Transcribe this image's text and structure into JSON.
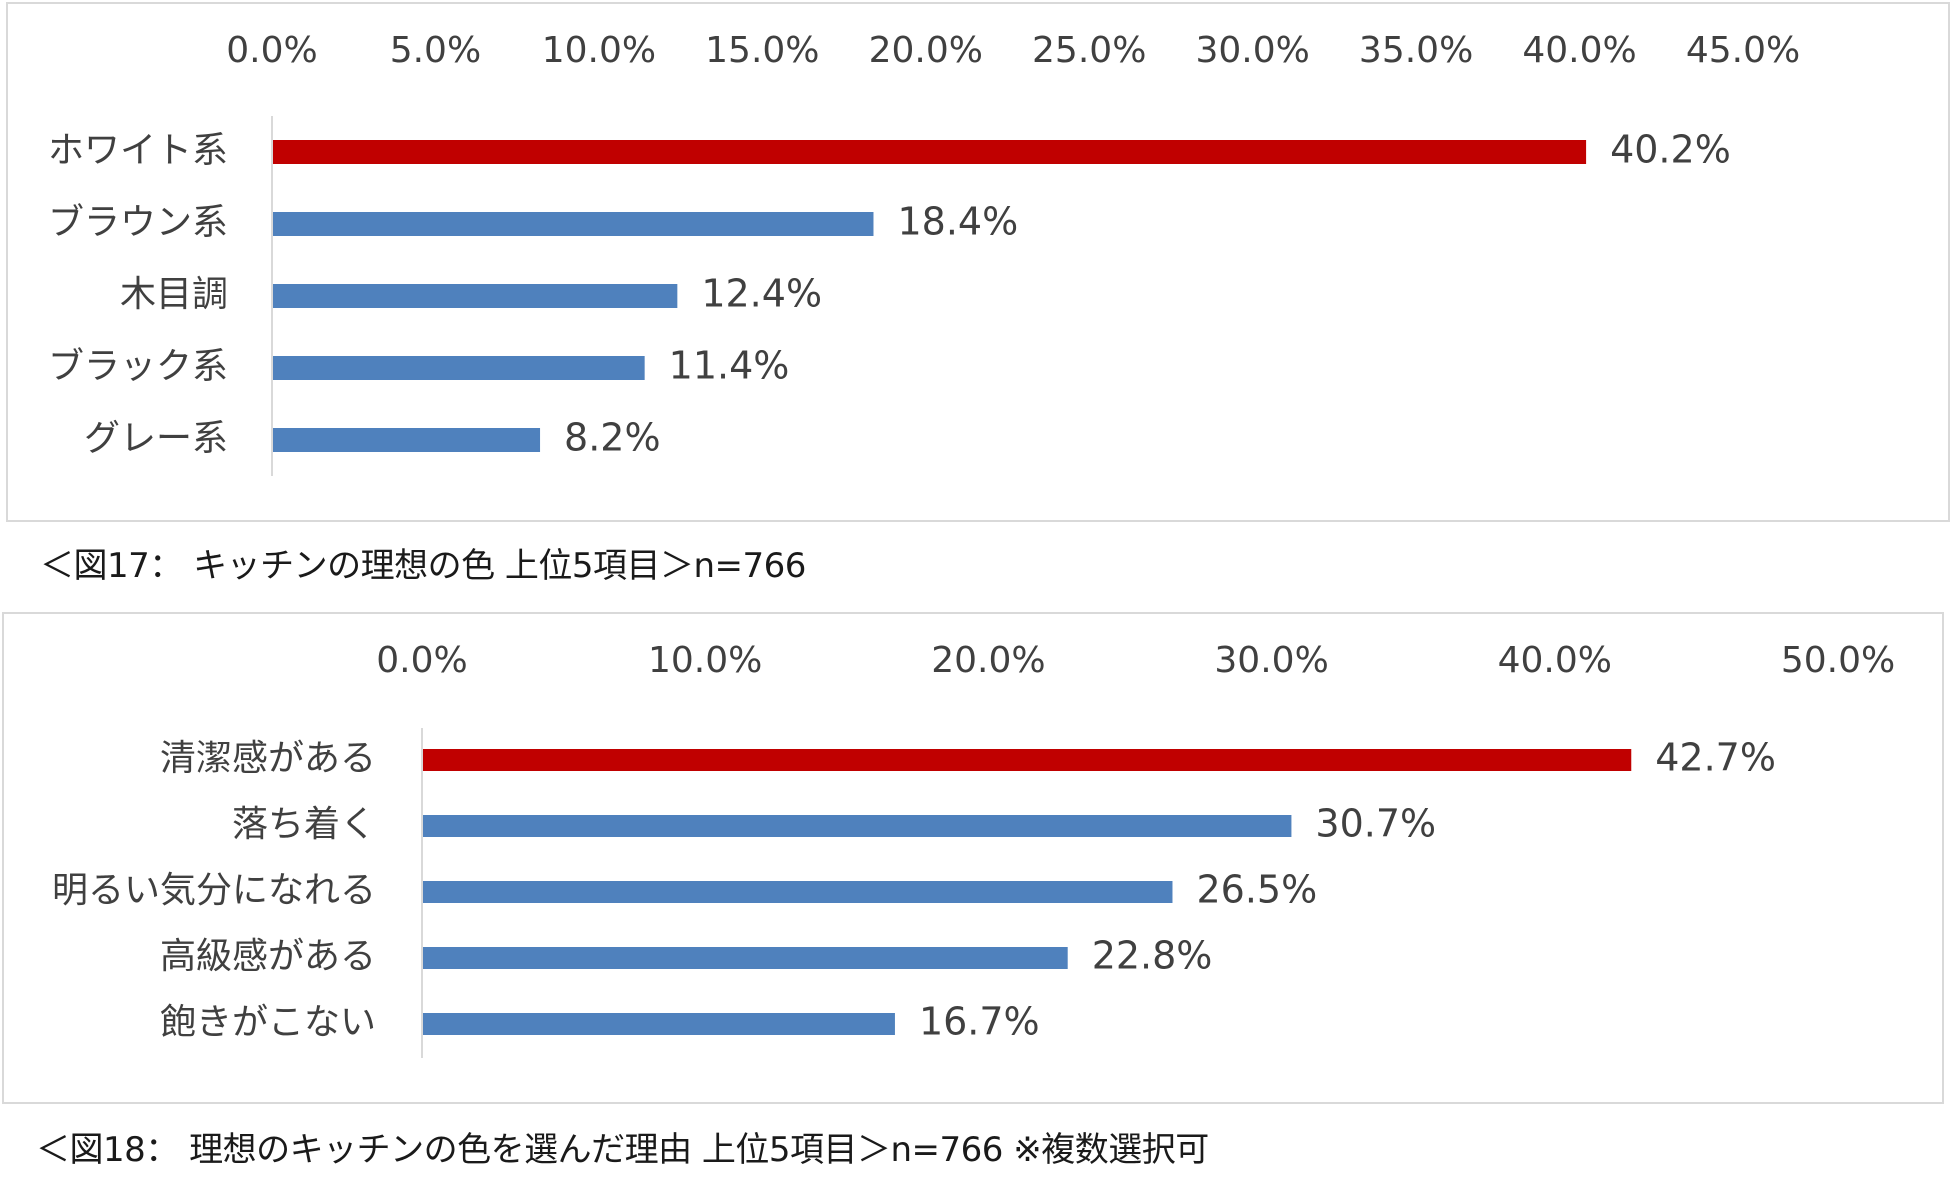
{
  "chart_data": [
    {
      "type": "bar",
      "orientation": "horizontal",
      "categories": [
        "ホワイト系",
        "ブラウン系",
        "木目調",
        "ブラック系",
        "グレー系"
      ],
      "values": [
        40.2,
        18.4,
        12.4,
        11.4,
        8.2
      ],
      "data_labels": [
        "40.2%",
        "18.4%",
        "12.4%",
        "11.4%",
        "8.2%"
      ],
      "xlim": [
        0,
        45
      ],
      "ticks": [
        0,
        5,
        10,
        15,
        20,
        25,
        30,
        35,
        40,
        45
      ],
      "tick_labels": [
        "0.0%",
        "5.0%",
        "10.0%",
        "15.0%",
        "20.0%",
        "25.0%",
        "30.0%",
        "35.0%",
        "40.0%",
        "45.0%"
      ],
      "axis_position": "top",
      "grid": false,
      "legend": "none",
      "caption": "＜図17： キッチンの理想の色 上位5項目＞n=766"
    },
    {
      "type": "bar",
      "orientation": "horizontal",
      "categories": [
        "清潔感がある",
        "落ち着く",
        "明るい気分になれる",
        "高級感がある",
        "飽きがこない"
      ],
      "values": [
        42.7,
        30.7,
        26.5,
        22.8,
        16.7
      ],
      "data_labels": [
        "42.7%",
        "30.7%",
        "26.5%",
        "22.8%",
        "16.7%"
      ],
      "xlim": [
        0,
        50
      ],
      "ticks": [
        0,
        10,
        20,
        30,
        40,
        50
      ],
      "tick_labels": [
        "0.0%",
        "10.0%",
        "20.0%",
        "30.0%",
        "40.0%",
        "50.0%"
      ],
      "axis_position": "top",
      "grid": false,
      "legend": "none",
      "caption": "＜図18： 理想のキッチンの色を選んだ理由 上位5項目＞n=766 ※複数選択可"
    }
  ],
  "colors": {
    "highlight": "#c00000",
    "bar": "#4f81bd",
    "axis": "#d9d9d9",
    "text": "#404040"
  }
}
